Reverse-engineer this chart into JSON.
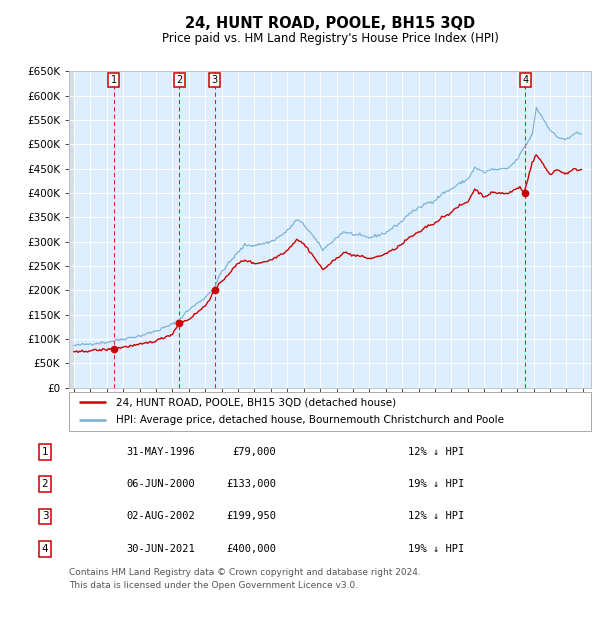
{
  "title": "24, HUNT ROAD, POOLE, BH15 3QD",
  "subtitle": "Price paid vs. HM Land Registry's House Price Index (HPI)",
  "sales": [
    {
      "date": "1996-05-31",
      "price": 79000,
      "label": "1",
      "date_str": "31-MAY-1996",
      "x_year": 1996.415
    },
    {
      "date": "2000-06-06",
      "price": 133000,
      "label": "2",
      "date_str": "06-JUN-2000",
      "x_year": 2000.427
    },
    {
      "date": "2002-08-02",
      "price": 199950,
      "label": "3",
      "date_str": "02-AUG-2002",
      "x_year": 2002.581
    },
    {
      "date": "2021-06-30",
      "price": 400000,
      "label": "4",
      "date_str": "30-JUN-2021",
      "x_year": 2021.496
    }
  ],
  "hpi_color": "#7ab0d4",
  "sale_color": "#cc0000",
  "ylim": [
    0,
    650000
  ],
  "yticks": [
    0,
    50000,
    100000,
    150000,
    200000,
    250000,
    300000,
    350000,
    400000,
    450000,
    500000,
    550000,
    600000,
    650000
  ],
  "xlim_start": 1993.7,
  "xlim_end": 2025.5,
  "plot_bg": "#ddeeff",
  "grid_color": "#ffffff",
  "legend_label_sale": "24, HUNT ROAD, POOLE, BH15 3QD (detached house)",
  "legend_label_hpi": "HPI: Average price, detached house, Bournemouth Christchurch and Poole",
  "footer": "Contains HM Land Registry data © Crown copyright and database right 2024.\nThis data is licensed under the Open Government Licence v3.0.",
  "table_rows": [
    [
      "1",
      "31-MAY-1996",
      "£79,000",
      "12% ↓ HPI"
    ],
    [
      "2",
      "06-JUN-2000",
      "£133,000",
      "19% ↓ HPI"
    ],
    [
      "3",
      "02-AUG-2002",
      "£199,950",
      "12% ↓ HPI"
    ],
    [
      "4",
      "30-JUN-2021",
      "£400,000",
      "19% ↓ HPI"
    ]
  ]
}
